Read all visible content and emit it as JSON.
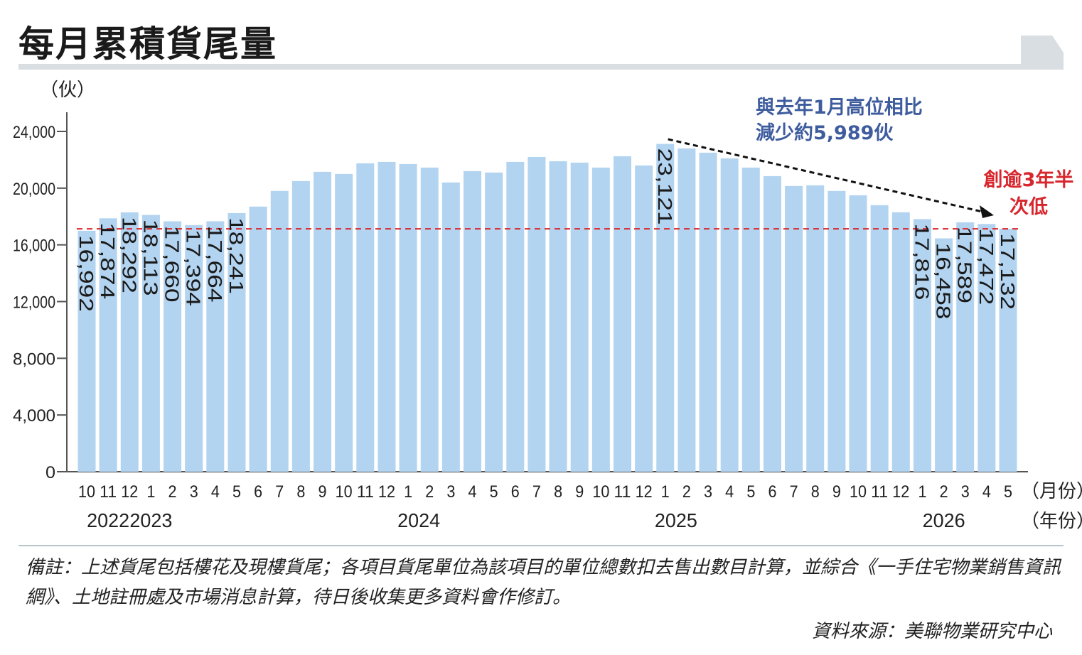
{
  "title": "每月累積貨尾量",
  "chart_data": {
    "type": "bar",
    "unit_label": "（伙）",
    "yticks": [
      "0",
      "4,000",
      "8,000",
      "12,000",
      "16,000",
      "20,000",
      "24,000"
    ],
    "ylim": [
      0,
      24000
    ],
    "x_months": [
      "10",
      "11",
      "12",
      "1",
      "2",
      "3",
      "4",
      "5",
      "6",
      "7",
      "8",
      "9",
      "10",
      "11",
      "12",
      "1",
      "2",
      "3",
      "4",
      "5",
      "6",
      "7",
      "8",
      "9",
      "10",
      "11",
      "12",
      "1",
      "2",
      "3",
      "4",
      "5",
      "6",
      "7",
      "8",
      "9",
      "10",
      "11",
      "12",
      "1",
      "2",
      "3",
      "4",
      "5"
    ],
    "years": [
      {
        "label": "2022",
        "start": 0,
        "end": 2
      },
      {
        "label": "2023",
        "start": 3,
        "end": 3
      },
      {
        "label": "2024",
        "start": 15,
        "end": 16
      },
      {
        "label": "2025",
        "start": 27,
        "end": 28
      },
      {
        "label": "2026",
        "start": 39,
        "end": 41
      }
    ],
    "x_unit_month": "（月份）",
    "x_unit_year": "（年份）",
    "values": [
      16992,
      17874,
      18292,
      18113,
      17660,
      17394,
      17664,
      18241,
      18700,
      19800,
      20500,
      21150,
      21000,
      21750,
      21850,
      21700,
      21450,
      20400,
      21200,
      21100,
      21850,
      22200,
      21900,
      21800,
      21450,
      22250,
      21600,
      23121,
      22800,
      22500,
      22100,
      21450,
      20850,
      20150,
      20200,
      19800,
      19500,
      18800,
      18300,
      17816,
      16458,
      17589,
      17472,
      17132
    ],
    "data_labels": [
      {
        "index": 0,
        "text": "16,992"
      },
      {
        "index": 1,
        "text": "17,874"
      },
      {
        "index": 2,
        "text": "18,292"
      },
      {
        "index": 3,
        "text": "18,113"
      },
      {
        "index": 4,
        "text": "17,660"
      },
      {
        "index": 5,
        "text": "17,394"
      },
      {
        "index": 6,
        "text": "17,664"
      },
      {
        "index": 7,
        "text": "18,241"
      },
      {
        "index": 27,
        "text": "23,121"
      },
      {
        "index": 39,
        "text": "17,816"
      },
      {
        "index": 40,
        "text": "16,458"
      },
      {
        "index": 41,
        "text": "17,589"
      },
      {
        "index": 42,
        "text": "17,472"
      },
      {
        "index": 43,
        "text": "17,132"
      }
    ],
    "reference_line_value": 17132,
    "annotations": {
      "decline_line1": "與去年1月高位相比",
      "decline_line2": "減少約5,989伙",
      "low_line1": "創逾3年半",
      "low_line2": "次低"
    },
    "colors": {
      "bar": "#b3d4f0",
      "reference_line": "#d7262d",
      "axis": "#555555",
      "title_arrow": "#d9dee3",
      "annotation_blue": "#3e5c9e",
      "annotation_red": "#d7262d"
    }
  },
  "footer": {
    "note": "備註：上述貨尾包括樓花及現樓貨尾；各項目貨尾單位為該項目的單位總數扣去售出數目計算，並綜合《一手住宅物業銷售資訊網》、土地註冊處及市場消息計算，待日後收集更多資料會作修訂。",
    "source": "資料來源：美聯物業研究中心"
  }
}
